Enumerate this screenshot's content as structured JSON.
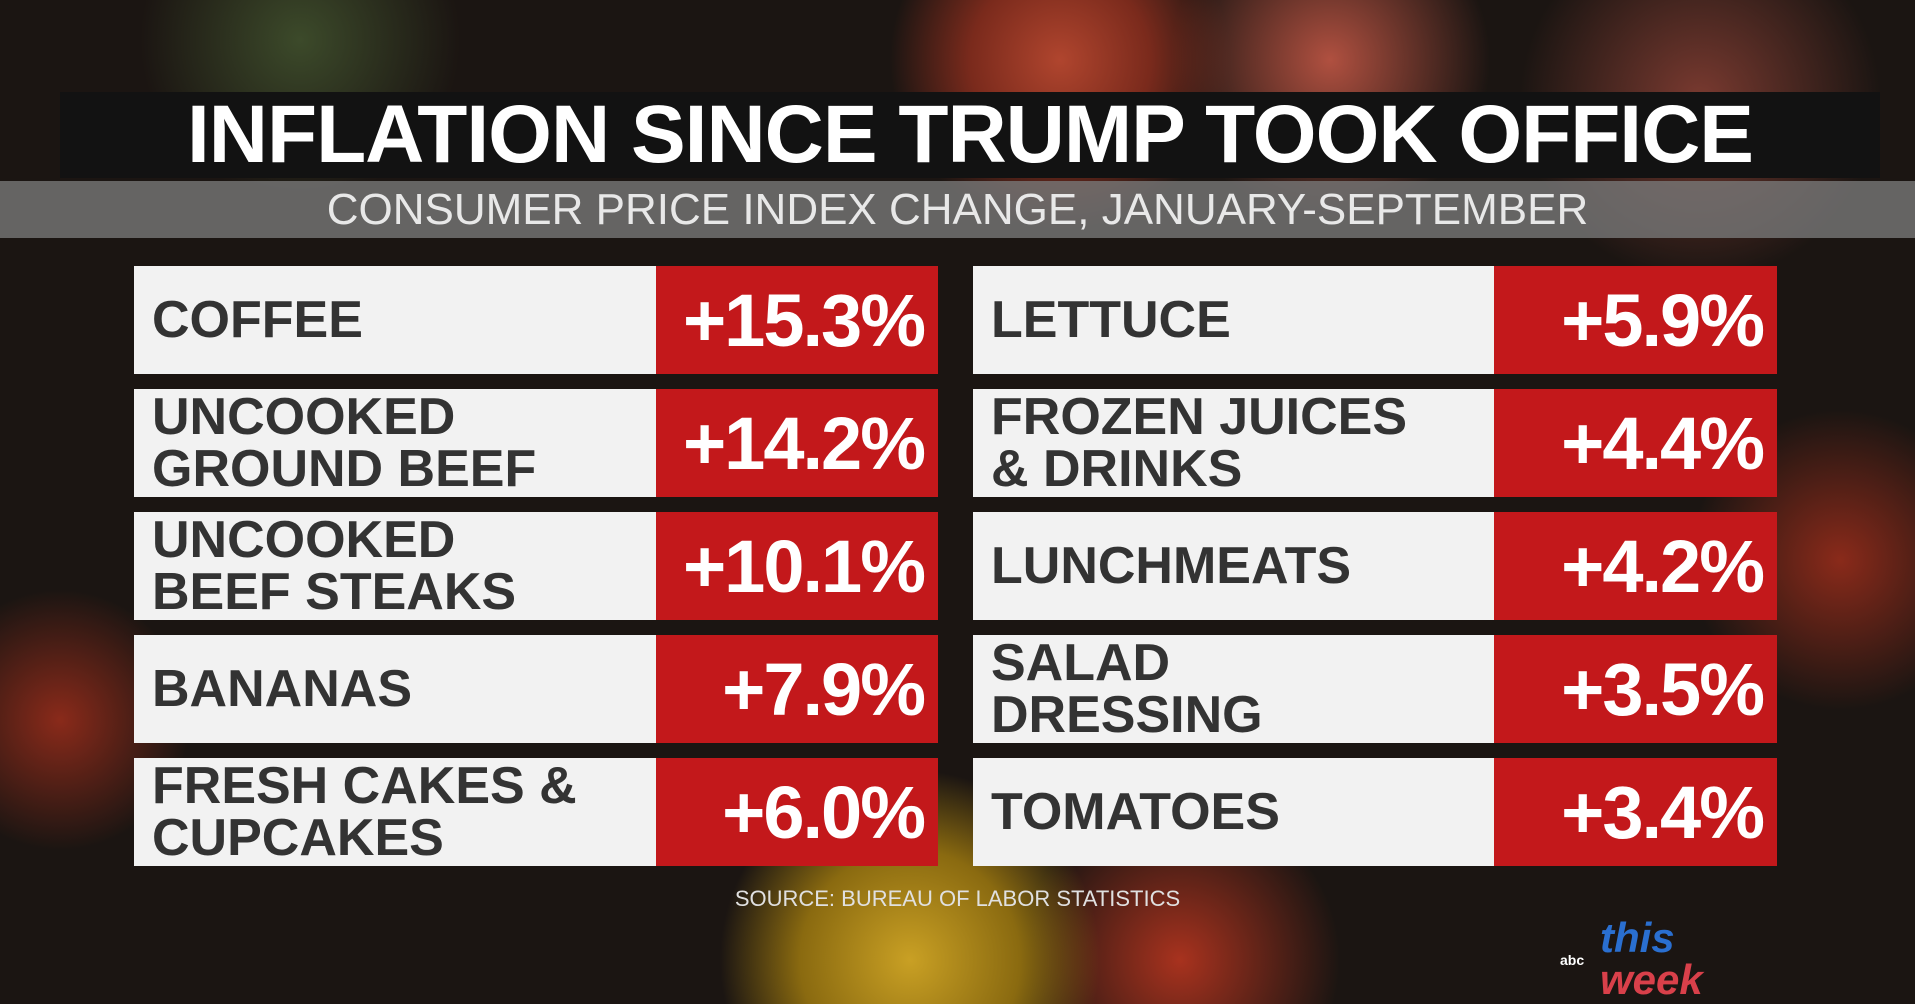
{
  "title": "INFLATION SINCE TRUMP TOOK OFFICE",
  "subtitle": "CONSUMER PRICE INDEX CHANGE, JANUARY-SEPTEMBER",
  "left": [
    {
      "label": "COFFEE",
      "value": "+15.3%"
    },
    {
      "label": "UNCOOKED\nGROUND BEEF",
      "value": "+14.2%"
    },
    {
      "label": "UNCOOKED\nBEEF STEAKS",
      "value": "+10.1%"
    },
    {
      "label": "BANANAS",
      "value": "+7.9%"
    },
    {
      "label": "FRESH CAKES &\nCUPCAKES",
      "value": "+6.0%"
    }
  ],
  "right": [
    {
      "label": "LETTUCE",
      "value": "+5.9%"
    },
    {
      "label": "FROZEN JUICES\n& DRINKS",
      "value": "+4.4%"
    },
    {
      "label": "LUNCHMEATS",
      "value": "+4.2%"
    },
    {
      "label": "SALAD\nDRESSING",
      "value": "+3.5%"
    },
    {
      "label": "TOMATOES",
      "value": "+3.4%"
    }
  ],
  "source": "SOURCE: BUREAU OF LABOR STATISTICS",
  "logo": {
    "network": "abc",
    "show_top": "this",
    "show_bottom": "week"
  },
  "colors": {
    "value_bg": "#c3181b",
    "label_bg": "#f2f2f2",
    "title_bg": "#121212"
  }
}
